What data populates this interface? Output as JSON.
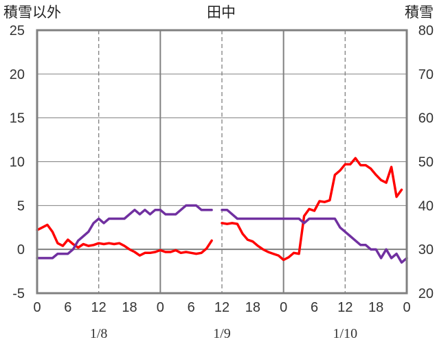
{
  "chart_data": {
    "type": "line",
    "title": "田中",
    "left_axis_label": "積雪以外",
    "right_axis_label": "積雪",
    "left_ylim": [
      -5,
      25
    ],
    "right_ylim": [
      20,
      80
    ],
    "left_ticks": [
      "-5",
      "0",
      "5",
      "10",
      "15",
      "20",
      "25"
    ],
    "right_ticks": [
      "20",
      "30",
      "40",
      "50",
      "60",
      "70",
      "80"
    ],
    "x_ticks": [
      "0",
      "6",
      "12",
      "18",
      "0",
      "6",
      "12",
      "18",
      "0",
      "6",
      "12",
      "18",
      "0"
    ],
    "x_range_hours": [
      0,
      72
    ],
    "dates": [
      "1/8",
      "1/9",
      "1/10"
    ],
    "grid": true,
    "series": [
      {
        "color": "#ff0000",
        "axis": "left",
        "segments": [
          [
            [
              0,
              2.2
            ],
            [
              1,
              2.5
            ],
            [
              2,
              2.8
            ],
            [
              3,
              2.0
            ],
            [
              4,
              0.7
            ],
            [
              5,
              0.4
            ],
            [
              6,
              1.1
            ],
            [
              7,
              0.6
            ],
            [
              8,
              0.2
            ],
            [
              9,
              0.6
            ],
            [
              10,
              0.4
            ],
            [
              11,
              0.5
            ],
            [
              12,
              0.7
            ],
            [
              13,
              0.6
            ],
            [
              14,
              0.7
            ],
            [
              15,
              0.6
            ],
            [
              16,
              0.7
            ],
            [
              17,
              0.4
            ],
            [
              18,
              0.0
            ],
            [
              19,
              -0.3
            ],
            [
              20,
              -0.7
            ],
            [
              21,
              -0.4
            ],
            [
              22,
              -0.4
            ],
            [
              23,
              -0.3
            ],
            [
              24,
              -0.1
            ],
            [
              25,
              -0.3
            ],
            [
              26,
              -0.3
            ],
            [
              27,
              -0.1
            ],
            [
              28,
              -0.4
            ],
            [
              29,
              -0.3
            ],
            [
              30,
              -0.4
            ],
            [
              31,
              -0.5
            ],
            [
              32,
              -0.4
            ],
            [
              33,
              0.1
            ],
            [
              34,
              1.0
            ]
          ],
          [
            [
              36,
              3.0
            ],
            [
              37,
              2.9
            ],
            [
              38,
              3.0
            ],
            [
              39,
              2.9
            ],
            [
              40,
              1.8
            ],
            [
              41,
              1.1
            ],
            [
              42,
              0.9
            ],
            [
              43,
              0.4
            ],
            [
              44,
              0.0
            ],
            [
              45,
              -0.3
            ],
            [
              46,
              -0.5
            ],
            [
              47,
              -0.7
            ],
            [
              48,
              -1.2
            ],
            [
              49,
              -0.9
            ],
            [
              50,
              -0.4
            ],
            [
              51,
              -0.5
            ],
            [
              52,
              3.8
            ],
            [
              53,
              4.6
            ],
            [
              54,
              4.4
            ],
            [
              55,
              5.5
            ],
            [
              56,
              5.4
            ],
            [
              57,
              5.6
            ],
            [
              58,
              8.5
            ],
            [
              59,
              9.0
            ],
            [
              60,
              9.7
            ],
            [
              61,
              9.7
            ],
            [
              62,
              10.4
            ],
            [
              63,
              9.6
            ],
            [
              64,
              9.6
            ],
            [
              65,
              9.2
            ],
            [
              66,
              8.5
            ],
            [
              67,
              7.9
            ],
            [
              68,
              7.6
            ],
            [
              69,
              9.4
            ],
            [
              70,
              6.0
            ],
            [
              71,
              6.8
            ]
          ]
        ]
      },
      {
        "color": "#7030a0",
        "axis": "right",
        "segments": [
          [
            [
              0,
              28
            ],
            [
              1,
              28
            ],
            [
              2,
              28
            ],
            [
              3,
              28
            ],
            [
              4,
              29
            ],
            [
              5,
              29
            ],
            [
              6,
              29
            ],
            [
              7,
              30
            ],
            [
              8,
              32
            ],
            [
              9,
              33
            ],
            [
              10,
              34
            ],
            [
              11,
              36
            ],
            [
              12,
              37
            ],
            [
              13,
              36
            ],
            [
              14,
              37
            ],
            [
              15,
              37
            ],
            [
              16,
              37
            ],
            [
              17,
              37
            ],
            [
              18,
              38
            ],
            [
              19,
              39
            ],
            [
              20,
              38
            ],
            [
              21,
              39
            ],
            [
              22,
              38
            ],
            [
              23,
              39
            ],
            [
              24,
              39
            ],
            [
              25,
              38
            ],
            [
              26,
              38
            ],
            [
              27,
              38
            ],
            [
              28,
              39
            ],
            [
              29,
              40
            ],
            [
              30,
              40
            ],
            [
              31,
              40
            ],
            [
              32,
              39
            ],
            [
              33,
              39
            ],
            [
              34,
              39
            ]
          ],
          [
            [
              36,
              39
            ],
            [
              37,
              39
            ],
            [
              38,
              38
            ],
            [
              39,
              37
            ],
            [
              40,
              37
            ],
            [
              41,
              37
            ],
            [
              42,
              37
            ],
            [
              43,
              37
            ],
            [
              44,
              37
            ],
            [
              45,
              37
            ],
            [
              46,
              37
            ],
            [
              47,
              37
            ],
            [
              48,
              37
            ],
            [
              49,
              37
            ],
            [
              50,
              37
            ],
            [
              51,
              37
            ],
            [
              52,
              36
            ],
            [
              53,
              37
            ],
            [
              54,
              37
            ],
            [
              55,
              37
            ],
            [
              56,
              37
            ],
            [
              57,
              37
            ],
            [
              58,
              37
            ],
            [
              59,
              35
            ],
            [
              60,
              34
            ],
            [
              61,
              33
            ],
            [
              62,
              32
            ],
            [
              63,
              31
            ],
            [
              64,
              31
            ],
            [
              65,
              30
            ],
            [
              66,
              30
            ],
            [
              67,
              28
            ],
            [
              68,
              30
            ],
            [
              69,
              28
            ],
            [
              70,
              29
            ],
            [
              71,
              27
            ],
            [
              72,
              28
            ]
          ]
        ]
      }
    ]
  }
}
